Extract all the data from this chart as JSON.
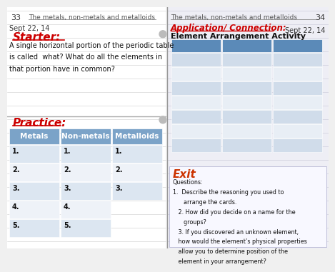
{
  "page_bg": "#f0f0f0",
  "left_bg": "#ffffff",
  "right_bg": "#eeeef5",
  "line_color": "#cccccc",
  "page_num_left": "33",
  "page_num_right": "34",
  "title": "The metals, non-metals and metalloids",
  "date": "Sept 22, 14",
  "starter_label": "Starter:",
  "starter_color": "#cc0000",
  "starter_text": "A single horizontal portion of the periodic table\nis called  what? What do all the elements in\nthat portion have in common?",
  "practice_label": "Practice:",
  "practice_color": "#cc0000",
  "table_header": [
    "Metals",
    "Non-metals",
    "Metalloids"
  ],
  "table_header_bg": "#7ba3c8",
  "table_row_bg1": "#dce6f1",
  "table_row_bg2": "#eef2f8",
  "table_rows": 5,
  "table_col3_rows": 3,
  "app_label": "Application/ Connection:",
  "app_color": "#cc0000",
  "app_activity": "Element Arrangement Activity",
  "exit_label": "Exit",
  "exit_color": "#cc3300",
  "exit_questions": "Questions:\n1.  Describe the reasoning you used to\n      arrange the cards.\n   2. How did you decide on a name for the\n      groups?\n   3. If you discovered an unknown element,\n   how would the element’s physical properties\n   allow you to determine position of the\n   element in your arrangement?",
  "right_table_header_bg": "#5b8ab8",
  "right_table_row_bg1": "#d0dcea",
  "right_table_row_bg2": "#e8eef5",
  "scrollbar_color": "#bbbbbb"
}
